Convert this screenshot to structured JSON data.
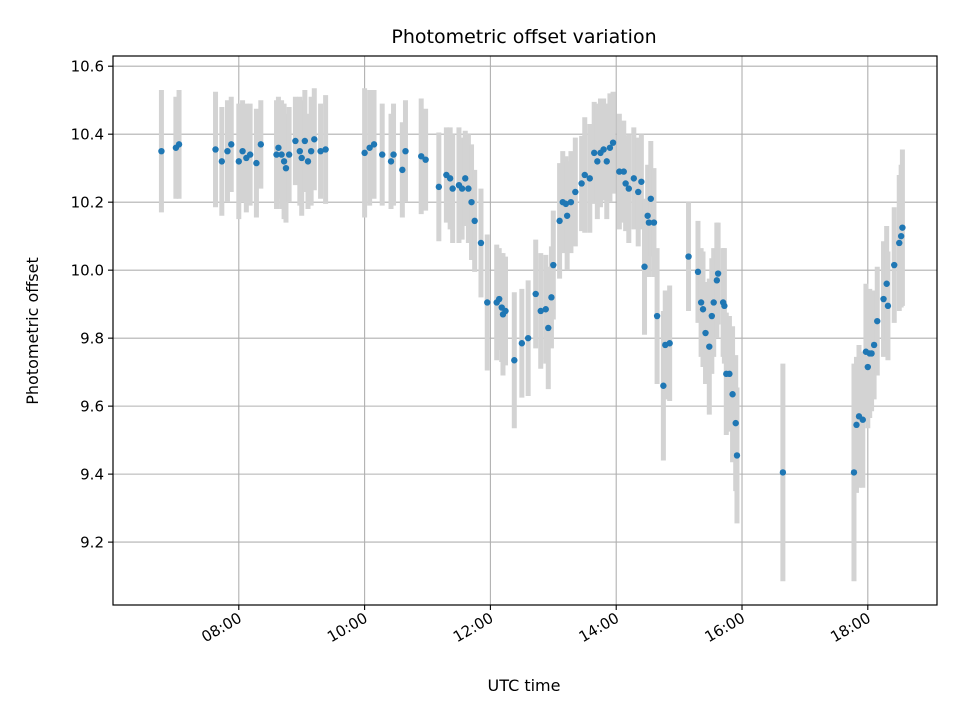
{
  "chart_data": {
    "type": "scatter",
    "title": "Photometric offset variation",
    "xlabel": "UTC time",
    "ylabel": "Photometric offset",
    "x_unit": "hours UTC",
    "xlim": [
      6.0,
      19.1
    ],
    "ylim": [
      9.015,
      10.63
    ],
    "x_ticks": [
      8,
      10,
      12,
      14,
      16,
      18
    ],
    "x_tick_labels": [
      "08:00",
      "10:00",
      "12:00",
      "14:00",
      "16:00",
      "18:00"
    ],
    "y_ticks": [
      9.2,
      9.4,
      9.6,
      9.8,
      10.0,
      10.2,
      10.4,
      10.6
    ],
    "y_tick_labels": [
      "9.2",
      "9.4",
      "9.6",
      "9.8",
      "10.0",
      "10.2",
      "10.4",
      "10.6"
    ],
    "grid": true,
    "point_color": "#1f77b4",
    "errorbar_color": "#d3d3d3",
    "points": [
      [
        6.77,
        10.35,
        0.18
      ],
      [
        7.0,
        10.36,
        0.15
      ],
      [
        7.05,
        10.37,
        0.16
      ],
      [
        7.63,
        10.355,
        0.17
      ],
      [
        7.73,
        10.32,
        0.16
      ],
      [
        7.82,
        10.35,
        0.15
      ],
      [
        7.88,
        10.37,
        0.14
      ],
      [
        8.0,
        10.32,
        0.17
      ],
      [
        8.06,
        10.35,
        0.15
      ],
      [
        8.12,
        10.33,
        0.16
      ],
      [
        8.18,
        10.34,
        0.15
      ],
      [
        8.28,
        10.315,
        0.16
      ],
      [
        8.35,
        10.37,
        0.13
      ],
      [
        8.6,
        10.34,
        0.16
      ],
      [
        8.63,
        10.36,
        0.15
      ],
      [
        8.68,
        10.34,
        0.16
      ],
      [
        8.72,
        10.32,
        0.17
      ],
      [
        8.75,
        10.3,
        0.16
      ],
      [
        8.8,
        10.34,
        0.14
      ],
      [
        8.9,
        10.38,
        0.13
      ],
      [
        8.97,
        10.35,
        0.16
      ],
      [
        9.0,
        10.33,
        0.17
      ],
      [
        9.05,
        10.38,
        0.15
      ],
      [
        9.1,
        10.32,
        0.14
      ],
      [
        9.15,
        10.35,
        0.16
      ],
      [
        9.2,
        10.385,
        0.15
      ],
      [
        9.3,
        10.35,
        0.14
      ],
      [
        9.38,
        10.355,
        0.16
      ],
      [
        10.0,
        10.345,
        0.19
      ],
      [
        10.08,
        10.36,
        0.17
      ],
      [
        10.15,
        10.37,
        0.16
      ],
      [
        10.28,
        10.34,
        0.15
      ],
      [
        10.42,
        10.32,
        0.14
      ],
      [
        10.46,
        10.34,
        0.15
      ],
      [
        10.6,
        10.295,
        0.14
      ],
      [
        10.65,
        10.35,
        0.15
      ],
      [
        10.9,
        10.335,
        0.17
      ],
      [
        10.97,
        10.325,
        0.15
      ],
      [
        11.18,
        10.245,
        0.16
      ],
      [
        11.3,
        10.28,
        0.14
      ],
      [
        11.36,
        10.27,
        0.15
      ],
      [
        11.4,
        10.24,
        0.16
      ],
      [
        11.5,
        10.25,
        0.17
      ],
      [
        11.55,
        10.24,
        0.15
      ],
      [
        11.6,
        10.27,
        0.14
      ],
      [
        11.65,
        10.24,
        0.16
      ],
      [
        11.7,
        10.2,
        0.17
      ],
      [
        11.75,
        10.145,
        0.15
      ],
      [
        11.85,
        10.08,
        0.16
      ],
      [
        11.95,
        9.905,
        0.2
      ],
      [
        12.1,
        9.905,
        0.17
      ],
      [
        12.14,
        9.915,
        0.15
      ],
      [
        12.18,
        9.89,
        0.16
      ],
      [
        12.2,
        9.87,
        0.18
      ],
      [
        12.24,
        9.88,
        0.16
      ],
      [
        12.38,
        9.735,
        0.2
      ],
      [
        12.5,
        9.785,
        0.16
      ],
      [
        12.6,
        9.8,
        0.17
      ],
      [
        12.72,
        9.93,
        0.16
      ],
      [
        12.8,
        9.88,
        0.17
      ],
      [
        12.88,
        9.885,
        0.16
      ],
      [
        12.92,
        9.83,
        0.18
      ],
      [
        12.97,
        9.92,
        0.15
      ],
      [
        13.0,
        10.015,
        0.16
      ],
      [
        13.1,
        10.145,
        0.17
      ],
      [
        13.15,
        10.2,
        0.15
      ],
      [
        13.2,
        10.195,
        0.14
      ],
      [
        13.22,
        10.16,
        0.16
      ],
      [
        13.28,
        10.2,
        0.15
      ],
      [
        13.35,
        10.23,
        0.16
      ],
      [
        13.45,
        10.255,
        0.14
      ],
      [
        13.5,
        10.28,
        0.17
      ],
      [
        13.58,
        10.27,
        0.16
      ],
      [
        13.65,
        10.345,
        0.15
      ],
      [
        13.7,
        10.32,
        0.17
      ],
      [
        13.75,
        10.345,
        0.16
      ],
      [
        13.8,
        10.355,
        0.15
      ],
      [
        13.85,
        10.32,
        0.17
      ],
      [
        13.9,
        10.36,
        0.16
      ],
      [
        13.95,
        10.375,
        0.15
      ],
      [
        14.05,
        10.29,
        0.17
      ],
      [
        14.12,
        10.29,
        0.15
      ],
      [
        14.15,
        10.255,
        0.14
      ],
      [
        14.2,
        10.24,
        0.16
      ],
      [
        14.28,
        10.27,
        0.15
      ],
      [
        14.35,
        10.23,
        0.16
      ],
      [
        14.4,
        10.26,
        0.14
      ],
      [
        14.45,
        10.01,
        0.2
      ],
      [
        14.5,
        10.16,
        0.15
      ],
      [
        14.52,
        10.14,
        0.16
      ],
      [
        14.55,
        10.21,
        0.17
      ],
      [
        14.6,
        10.14,
        0.16
      ],
      [
        14.65,
        9.865,
        0.2
      ],
      [
        14.75,
        9.66,
        0.22
      ],
      [
        14.78,
        9.78,
        0.16
      ],
      [
        14.85,
        9.785,
        0.17
      ],
      [
        15.15,
        10.04,
        0.16
      ],
      [
        15.3,
        9.995,
        0.15
      ],
      [
        15.35,
        9.905,
        0.16
      ],
      [
        15.38,
        9.885,
        0.17
      ],
      [
        15.42,
        9.815,
        0.15
      ],
      [
        15.48,
        9.775,
        0.2
      ],
      [
        15.52,
        9.865,
        0.17
      ],
      [
        15.55,
        9.905,
        0.16
      ],
      [
        15.6,
        9.97,
        0.17
      ],
      [
        15.62,
        9.99,
        0.15
      ],
      [
        15.7,
        9.905,
        0.16
      ],
      [
        15.72,
        9.895,
        0.17
      ],
      [
        15.75,
        9.695,
        0.18
      ],
      [
        15.8,
        9.695,
        0.17
      ],
      [
        15.85,
        9.635,
        0.2
      ],
      [
        15.9,
        9.55,
        0.2
      ],
      [
        15.92,
        9.455,
        0.2
      ],
      [
        16.65,
        9.405,
        0.32
      ],
      [
        17.78,
        9.405,
        0.32
      ],
      [
        17.82,
        9.545,
        0.2
      ],
      [
        17.86,
        9.57,
        0.21
      ],
      [
        17.92,
        9.56,
        0.2
      ],
      [
        17.97,
        9.76,
        0.2
      ],
      [
        18.0,
        9.715,
        0.18
      ],
      [
        18.03,
        9.755,
        0.19
      ],
      [
        18.06,
        9.755,
        0.17
      ],
      [
        18.1,
        9.78,
        0.16
      ],
      [
        18.15,
        9.85,
        0.16
      ],
      [
        18.25,
        9.915,
        0.17
      ],
      [
        18.3,
        9.96,
        0.17
      ],
      [
        18.32,
        9.895,
        0.16
      ],
      [
        18.42,
        10.015,
        0.17
      ],
      [
        18.5,
        10.08,
        0.2
      ],
      [
        18.53,
        10.1,
        0.21
      ],
      [
        18.55,
        10.125,
        0.23
      ]
    ]
  }
}
